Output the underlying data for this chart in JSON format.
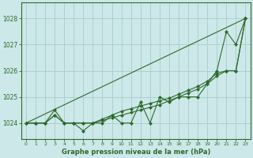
{
  "title": "Graphe pression niveau de la mer (hPa)",
  "bg_color": "#cce8e8",
  "grid_color": "#aacccc",
  "line_color": "#2d6a2d",
  "x_labels": [
    "0",
    "1",
    "2",
    "3",
    "4",
    "5",
    "6",
    "7",
    "8",
    "9",
    "10",
    "11",
    "12",
    "13",
    "14",
    "15",
    "16",
    "17",
    "18",
    "19",
    "20",
    "21",
    "22",
    "23"
  ],
  "ylim": [
    1023.4,
    1028.6
  ],
  "yticks": [
    1024,
    1025,
    1026,
    1027,
    1028
  ],
  "y_detail": [
    1024.0,
    1024.0,
    1024.0,
    1024.5,
    1024.0,
    1024.0,
    1023.7,
    1024.0,
    1024.0,
    1024.3,
    1024.0,
    1024.0,
    1024.8,
    1024.0,
    1025.0,
    1024.8,
    1025.0,
    1025.0,
    1025.0,
    1025.5,
    1026.0,
    1027.5,
    1027.0,
    1028.0
  ],
  "y_trend1": [
    1024.0,
    1024.0,
    1024.0,
    1024.3,
    1024.0,
    1024.0,
    1024.0,
    1024.0,
    1024.1,
    1024.2,
    1024.3,
    1024.4,
    1024.5,
    1024.6,
    1024.7,
    1024.85,
    1025.0,
    1025.15,
    1025.3,
    1025.5,
    1025.8,
    1026.0,
    1026.0,
    1028.0
  ],
  "y_trend2": [
    1024.0,
    1024.0,
    1024.0,
    1024.3,
    1024.0,
    1024.0,
    1024.0,
    1024.0,
    1024.15,
    1024.3,
    1024.45,
    1024.55,
    1024.65,
    1024.75,
    1024.85,
    1024.95,
    1025.1,
    1025.25,
    1025.4,
    1025.6,
    1025.9,
    1026.0,
    1026.0,
    1028.0
  ],
  "y_diag": [
    1024.0,
    1024.174,
    1024.348,
    1024.522,
    1024.696,
    1024.87,
    1025.043,
    1025.217,
    1025.391,
    1025.565,
    1025.739,
    1025.913,
    1026.087,
    1026.261,
    1026.435,
    1026.609,
    1026.783,
    1026.957,
    1027.13,
    1027.304,
    1027.478,
    1027.652,
    1027.826,
    1028.0
  ]
}
